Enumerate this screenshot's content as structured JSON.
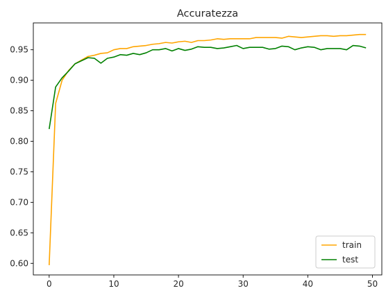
{
  "chart_data": {
    "type": "line",
    "title": "Accuratezza",
    "xlabel": "",
    "ylabel": "",
    "xlim": [
      -2.45,
      51.45
    ],
    "ylim": [
      0.581,
      0.994
    ],
    "xticks": [
      0,
      10,
      20,
      30,
      40,
      50
    ],
    "yticks": [
      0.6,
      0.65,
      0.7,
      0.75,
      0.8,
      0.85,
      0.9,
      0.95
    ],
    "ytick_labels": [
      "0.60",
      "0.65",
      "0.70",
      "0.75",
      "0.80",
      "0.85",
      "0.90",
      "0.95"
    ],
    "grid": false,
    "legend_position": "lower-right",
    "x": [
      0,
      1,
      2,
      3,
      4,
      5,
      6,
      7,
      8,
      9,
      10,
      11,
      12,
      13,
      14,
      15,
      16,
      17,
      18,
      19,
      20,
      21,
      22,
      23,
      24,
      25,
      26,
      27,
      28,
      29,
      30,
      31,
      32,
      33,
      34,
      35,
      36,
      37,
      38,
      39,
      40,
      41,
      42,
      43,
      44,
      45,
      46,
      47,
      48,
      49
    ],
    "series": [
      {
        "name": "train",
        "color": "#ffa500",
        "values": [
          0.597,
          0.862,
          0.9,
          0.916,
          0.927,
          0.933,
          0.939,
          0.941,
          0.944,
          0.945,
          0.95,
          0.952,
          0.952,
          0.955,
          0.956,
          0.957,
          0.959,
          0.96,
          0.962,
          0.961,
          0.963,
          0.964,
          0.962,
          0.965,
          0.965,
          0.966,
          0.968,
          0.967,
          0.968,
          0.968,
          0.968,
          0.968,
          0.97,
          0.97,
          0.97,
          0.97,
          0.969,
          0.972,
          0.971,
          0.97,
          0.971,
          0.972,
          0.973,
          0.973,
          0.972,
          0.973,
          0.973,
          0.974,
          0.975,
          0.975
        ]
      },
      {
        "name": "test",
        "color": "#008000",
        "values": [
          0.82,
          0.889,
          0.904,
          0.915,
          0.927,
          0.932,
          0.937,
          0.936,
          0.928,
          0.936,
          0.938,
          0.942,
          0.941,
          0.944,
          0.942,
          0.945,
          0.95,
          0.95,
          0.952,
          0.948,
          0.952,
          0.949,
          0.951,
          0.955,
          0.954,
          0.954,
          0.952,
          0.953,
          0.955,
          0.957,
          0.952,
          0.954,
          0.954,
          0.954,
          0.951,
          0.952,
          0.956,
          0.955,
          0.95,
          0.953,
          0.955,
          0.954,
          0.95,
          0.952,
          0.952,
          0.952,
          0.95,
          0.957,
          0.956,
          0.953
        ]
      }
    ]
  }
}
